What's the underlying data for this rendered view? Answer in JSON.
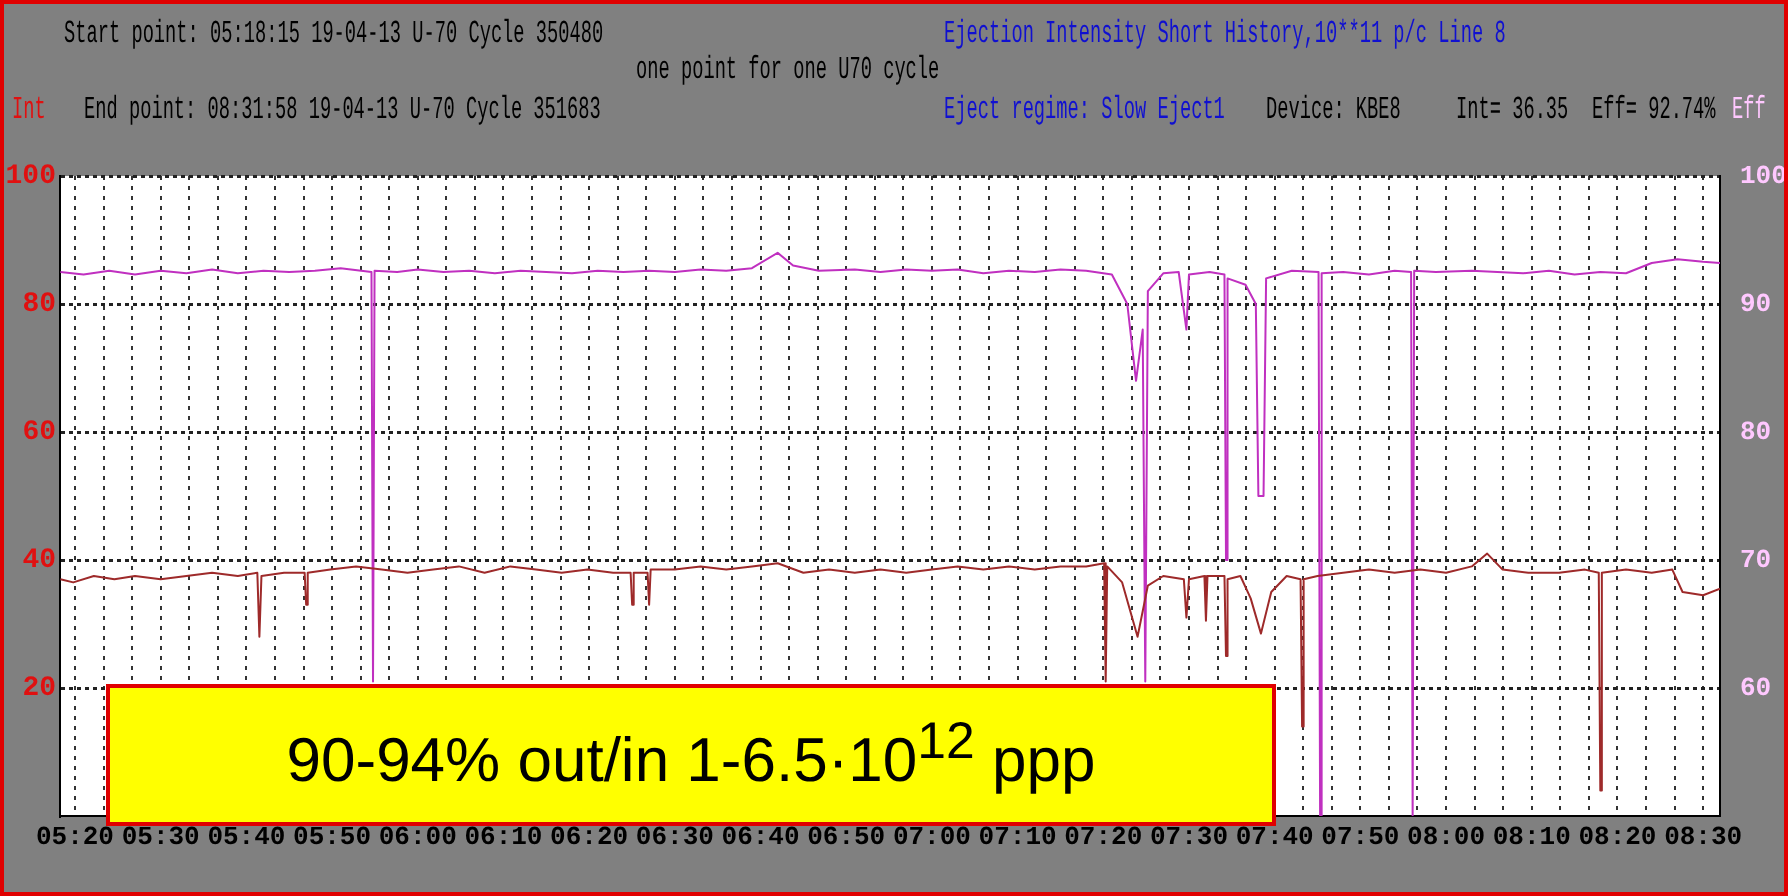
{
  "chart_data": {
    "type": "line",
    "title": "Ejection Intensity Short History,10**11 p/c Line  8",
    "ylabel": "Int",
    "y2label": "Eff",
    "annotations": [
      "Start point: 05:18:15 19-04-13 U-70 Cycle 350480",
      "End point: 08:31:58 19-04-13 U-70 Cycle 351683",
      "one point for one U70 cycle",
      "Eject regime: Slow Eject1",
      "Device: KBE8",
      "Int= 36.35",
      "Eff= 92.74%",
      "90-94% out/in 1-6.5·10$^{12}$ ppp"
    ],
    "xlim": [
      5.3042,
      8.5328
    ],
    "xticks": [
      {
        "value": 5.3333,
        "label": "05:20"
      },
      {
        "value": 5.3889,
        "label": null
      },
      {
        "value": 5.4444,
        "label": null
      },
      {
        "value": 5.5,
        "label": "05:30"
      },
      {
        "value": 5.5556,
        "label": null
      },
      {
        "value": 5.6111,
        "label": null
      },
      {
        "value": 5.6667,
        "label": "05:40"
      },
      {
        "value": 5.7222,
        "label": null
      },
      {
        "value": 5.7778,
        "label": null
      },
      {
        "value": 5.8333,
        "label": "05:50"
      },
      {
        "value": 5.8889,
        "label": null
      },
      {
        "value": 5.9444,
        "label": null
      },
      {
        "value": 6,
        "label": "06:00"
      },
      {
        "value": 6.0556,
        "label": null
      },
      {
        "value": 6.1111,
        "label": null
      },
      {
        "value": 6.1667,
        "label": "06:10"
      },
      {
        "value": 6.2222,
        "label": null
      },
      {
        "value": 6.2778,
        "label": null
      },
      {
        "value": 6.3333,
        "label": "06:20"
      },
      {
        "value": 6.3889,
        "label": null
      },
      {
        "value": 6.4444,
        "label": null
      },
      {
        "value": 6.5,
        "label": "06:30"
      },
      {
        "value": 6.5556,
        "label": null
      },
      {
        "value": 6.6111,
        "label": null
      },
      {
        "value": 6.6667,
        "label": "06:40"
      },
      {
        "value": 6.7222,
        "label": null
      },
      {
        "value": 6.7778,
        "label": null
      },
      {
        "value": 6.8333,
        "label": "06:50"
      },
      {
        "value": 6.8889,
        "label": null
      },
      {
        "value": 6.9444,
        "label": null
      },
      {
        "value": 7,
        "label": "07:00"
      },
      {
        "value": 7.0556,
        "label": null
      },
      {
        "value": 7.1111,
        "label": null
      },
      {
        "value": 7.1667,
        "label": "07:10"
      },
      {
        "value": 7.2222,
        "label": null
      },
      {
        "value": 7.2778,
        "label": null
      },
      {
        "value": 7.3333,
        "label": "07:20"
      },
      {
        "value": 7.3889,
        "label": null
      },
      {
        "value": 7.4444,
        "label": null
      },
      {
        "value": 7.5,
        "label": "07:30"
      },
      {
        "value": 7.5556,
        "label": null
      },
      {
        "value": 7.6111,
        "label": null
      },
      {
        "value": 7.6667,
        "label": "07:40"
      },
      {
        "value": 7.7222,
        "label": null
      },
      {
        "value": 7.7778,
        "label": null
      },
      {
        "value": 7.8333,
        "label": "07:50"
      },
      {
        "value": 7.8889,
        "label": null
      },
      {
        "value": 7.9444,
        "label": null
      },
      {
        "value": 8,
        "label": "08:00"
      },
      {
        "value": 8.0556,
        "label": null
      },
      {
        "value": 8.1111,
        "label": null
      },
      {
        "value": 8.1667,
        "label": "08:10"
      },
      {
        "value": 8.2222,
        "label": null
      },
      {
        "value": 8.2778,
        "label": null
      },
      {
        "value": 8.3333,
        "label": "08:20"
      },
      {
        "value": 8.3889,
        "label": null
      },
      {
        "value": 8.4444,
        "label": null
      },
      {
        "value": 8.5,
        "label": "08:30"
      }
    ],
    "ylim": [
      0,
      100
    ],
    "yticks": [
      20,
      40,
      60,
      80,
      100
    ],
    "y2lim": [
      50,
      100
    ],
    "y2ticks": [
      60,
      70,
      80,
      90,
      100
    ],
    "grid": true,
    "legend": false,
    "marker": "none",
    "line_style": "solid",
    "series": [
      {
        "color": "#9e2a2a",
        "x": [
          5.305,
          5.33,
          5.37,
          5.41,
          5.45,
          5.5,
          5.55,
          5.6,
          5.65,
          5.688,
          5.692,
          5.696,
          5.74,
          5.78,
          5.783,
          5.786,
          5.83,
          5.88,
          5.93,
          5.98,
          6.03,
          6.08,
          6.13,
          6.18,
          6.23,
          6.28,
          6.33,
          6.38,
          6.414,
          6.417,
          6.42,
          6.447,
          6.45,
          6.453,
          6.5,
          6.55,
          6.6,
          6.65,
          6.7,
          6.75,
          6.8,
          6.85,
          6.9,
          6.95,
          7.0,
          7.05,
          7.1,
          7.15,
          7.2,
          7.25,
          7.3,
          7.335,
          7.338,
          7.341,
          7.37,
          7.4,
          7.42,
          7.45,
          7.49,
          7.495,
          7.5,
          7.53,
          7.533,
          7.536,
          7.569,
          7.572,
          7.575,
          7.6,
          7.62,
          7.64,
          7.66,
          7.69,
          7.717,
          7.72,
          7.723,
          7.75,
          7.8,
          7.85,
          7.9,
          7.95,
          8.0,
          8.05,
          8.08,
          8.11,
          8.16,
          8.22,
          8.27,
          8.297,
          8.3,
          8.303,
          8.35,
          8.4,
          8.44,
          8.46,
          8.5,
          8.5328
        ],
        "values": [
          37,
          36.5,
          37.5,
          37,
          37.5,
          37,
          37.5,
          38,
          37.5,
          38,
          28,
          37.5,
          38,
          38,
          33,
          38,
          38.5,
          39,
          38.5,
          38,
          38.5,
          39,
          38,
          39,
          38.5,
          38,
          38.5,
          38,
          38,
          33,
          38,
          38,
          33,
          38.5,
          38.5,
          39,
          38.5,
          39,
          39.5,
          38,
          38.5,
          38,
          38.5,
          38,
          38.5,
          39,
          38.5,
          39,
          38.5,
          39,
          39,
          39.5,
          21,
          39,
          36.5,
          28,
          36,
          37.5,
          37,
          31,
          37,
          37.5,
          30.5,
          37.5,
          37.5,
          25,
          37,
          37.5,
          34,
          28.5,
          35,
          37.5,
          37,
          14,
          37,
          37.5,
          38,
          38.5,
          38,
          38.5,
          38,
          39,
          41,
          38.5,
          38,
          38,
          38.5,
          38,
          4,
          38,
          38.5,
          38,
          38.5,
          35,
          34.5,
          35.5
        ]
      },
      {
        "color": "#c030c0",
        "axis": "y2",
        "x": [
          5.305,
          5.35,
          5.4,
          5.45,
          5.5,
          5.55,
          5.6,
          5.65,
          5.7,
          5.75,
          5.8,
          5.85,
          5.91,
          5.913,
          5.916,
          5.96,
          6.0,
          6.05,
          6.1,
          6.15,
          6.2,
          6.25,
          6.3,
          6.35,
          6.4,
          6.45,
          6.5,
          6.55,
          6.6,
          6.65,
          6.7,
          6.73,
          6.78,
          6.85,
          6.9,
          6.95,
          7.0,
          7.05,
          7.1,
          7.15,
          7.2,
          7.25,
          7.3,
          7.35,
          7.38,
          7.397,
          7.41,
          7.415,
          7.42,
          7.45,
          7.48,
          7.495,
          7.5,
          7.54,
          7.569,
          7.572,
          7.575,
          7.61,
          7.63,
          7.635,
          7.645,
          7.65,
          7.7,
          7.752,
          7.755,
          7.758,
          7.8,
          7.85,
          7.9,
          7.932,
          7.935,
          7.938,
          7.98,
          8.05,
          8.1,
          8.15,
          8.2,
          8.25,
          8.3,
          8.35,
          8.4,
          8.45,
          8.5,
          8.5328
        ],
        "values": [
          92.5,
          92.3,
          92.6,
          92.3,
          92.6,
          92.4,
          92.7,
          92.4,
          92.6,
          92.5,
          92.6,
          92.8,
          92.5,
          60.5,
          92.6,
          92.5,
          92.7,
          92.5,
          92.6,
          92.4,
          92.6,
          92.5,
          92.4,
          92.6,
          92.5,
          92.6,
          92.5,
          92.7,
          92.6,
          92.8,
          94,
          93,
          92.6,
          92.7,
          92.5,
          92.7,
          92.6,
          92.7,
          92.4,
          92.6,
          92.5,
          92.7,
          92.6,
          92.3,
          90,
          84,
          88,
          60.5,
          91,
          92.4,
          92.5,
          88,
          92.3,
          92.5,
          92.3,
          70,
          92,
          91.5,
          90,
          75,
          75,
          92,
          92.6,
          92.5,
          50,
          92.4,
          92.5,
          92.3,
          92.6,
          92.5,
          50,
          92.6,
          92.5,
          92.6,
          92.5,
          92.4,
          92.6,
          92.3,
          92.5,
          92.4,
          93.2,
          93.5,
          93.3,
          93.2
        ]
      }
    ]
  }
}
